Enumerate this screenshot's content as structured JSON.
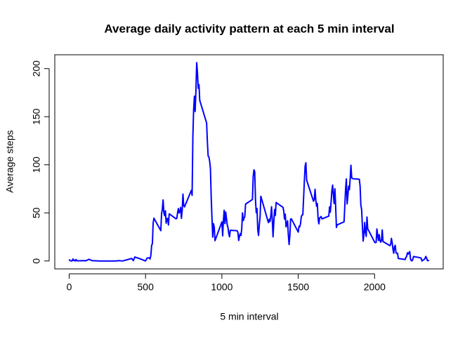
{
  "chart_data": {
    "type": "line",
    "title": "Average daily activity pattern at each 5 min interval",
    "x_label": "5 min interval",
    "y_label": "Average steps",
    "series": [
      {
        "color": "#0000ff",
        "x": [
          0,
          5,
          10,
          15,
          20,
          25,
          30,
          35,
          40,
          45,
          50,
          55,
          100,
          110,
          130,
          150,
          200,
          230,
          300,
          330,
          340,
          350,
          410,
          420,
          430,
          440,
          450,
          500,
          510,
          520,
          525,
          530,
          535,
          540,
          545,
          550,
          555,
          600,
          605,
          610,
          615,
          620,
          625,
          630,
          635,
          640,
          645,
          650,
          655,
          700,
          705,
          710,
          715,
          720,
          725,
          730,
          735,
          740,
          745,
          750,
          755,
          800,
          805,
          810,
          815,
          820,
          825,
          830,
          835,
          840,
          845,
          850,
          855,
          900,
          905,
          910,
          915,
          920,
          925,
          930,
          935,
          940,
          945,
          950,
          955,
          1000,
          1005,
          1010,
          1015,
          1020,
          1025,
          1030,
          1035,
          1040,
          1045,
          1050,
          1055,
          1100,
          1105,
          1110,
          1115,
          1120,
          1125,
          1130,
          1135,
          1140,
          1145,
          1150,
          1155,
          1200,
          1205,
          1210,
          1215,
          1220,
          1225,
          1230,
          1235,
          1240,
          1245,
          1250,
          1255,
          1300,
          1305,
          1310,
          1315,
          1320,
          1325,
          1330,
          1335,
          1340,
          1345,
          1350,
          1355,
          1400,
          1405,
          1410,
          1415,
          1420,
          1425,
          1430,
          1435,
          1440,
          1445,
          1450,
          1455,
          1500,
          1505,
          1510,
          1515,
          1520,
          1525,
          1530,
          1535,
          1540,
          1545,
          1550,
          1555,
          1600,
          1605,
          1610,
          1615,
          1620,
          1625,
          1630,
          1635,
          1640,
          1645,
          1650,
          1655,
          1700,
          1705,
          1710,
          1715,
          1720,
          1725,
          1730,
          1735,
          1740,
          1745,
          1750,
          1755,
          1800,
          1805,
          1810,
          1815,
          1820,
          1825,
          1830,
          1835,
          1840,
          1845,
          1850,
          1855,
          1900,
          1905,
          1910,
          1915,
          1920,
          1925,
          1930,
          1935,
          1940,
          1945,
          1950,
          1955,
          2000,
          2005,
          2010,
          2015,
          2020,
          2025,
          2030,
          2035,
          2040,
          2045,
          2050,
          2055,
          2100,
          2105,
          2110,
          2115,
          2120,
          2125,
          2130,
          2135,
          2140,
          2145,
          2150,
          2155,
          2200,
          2205,
          2210,
          2215,
          2220,
          2225,
          2230,
          2235,
          2240,
          2245,
          2250,
          2255,
          2300,
          2305,
          2310,
          2315,
          2320,
          2325,
          2330,
          2335,
          2340,
          2345,
          2350,
          2355
        ],
        "values": [
          1.7,
          0.3,
          0.1,
          0.2,
          0.1,
          2.1,
          0.5,
          0.9,
          0,
          1.5,
          0.3,
          0.1,
          0.3,
          0.2,
          1.8,
          0.3,
          0,
          0,
          0,
          0.3,
          0.1,
          0,
          2.6,
          0.3,
          4.1,
          3.5,
          3.1,
          0,
          3.0,
          3.3,
          3.0,
          2.1,
          6.1,
          16.0,
          18.3,
          39.5,
          44.5,
          31.5,
          49.3,
          53.8,
          63.5,
          50,
          47.1,
          52.2,
          39.3,
          44.0,
          44.2,
          37.4,
          49.0,
          43.8,
          44.4,
          50.5,
          54.5,
          49.9,
          51.0,
          55.7,
          44.3,
          52.3,
          69.5,
          57.8,
          56.2,
          73.4,
          68.2,
          129.4,
          157.5,
          171.2,
          155.4,
          177.3,
          206.2,
          195.9,
          179.6,
          183.4,
          167.0,
          143.5,
          124.0,
          109.1,
          108.1,
          103.7,
          96.0,
          66.2,
          45.2,
          24.8,
          38.8,
          35.0,
          21.1,
          40.6,
          26.1,
          42.4,
          52.7,
          38.9,
          50.8,
          44.3,
          37.4,
          34.7,
          28.3,
          25.1,
          31.9,
          31.4,
          29.7,
          21.3,
          25.5,
          28.4,
          26.5,
          33.4,
          50.0,
          42.0,
          44.6,
          46.0,
          59.2,
          63.9,
          87.7,
          94.8,
          92.8,
          63.4,
          50.2,
          54.5,
          32.4,
          26.5,
          37.7,
          45.1,
          67.3,
          42.3,
          39.9,
          43.3,
          41.0,
          46.2,
          56.4,
          42.8,
          25.1,
          40.0,
          53.5,
          47.3,
          60.8,
          55.8,
          52.0,
          43.6,
          48.7,
          35.5,
          37.5,
          41.8,
          27.5,
          17.1,
          26.1,
          43.6,
          43.8,
          30.0,
          36.1,
          35.5,
          38.8,
          46.0,
          47.8,
          48.1,
          65.3,
          82.9,
          98.7,
          102.1,
          84.0,
          62.1,
          64.1,
          74.5,
          63.2,
          56.9,
          59.8,
          43.9,
          38.6,
          44.7,
          45.5,
          46.2,
          43.7,
          46.6,
          56.3,
          50.7,
          61.2,
          72.7,
          78.9,
          68.9,
          59.7,
          75.1,
          56.5,
          34.8,
          37.5,
          40.7,
          58.0,
          74.7,
          85.3,
          59.3,
          67.8,
          77.7,
          74.2,
          85.3,
          99.5,
          86.6,
          85.6,
          84.9,
          77.8,
          58.0,
          53.4,
          36.3,
          20.7,
          27.4,
          40.0,
          30.2,
          25.5,
          45.7,
          33.5,
          19.6,
          19.0,
          19.3,
          33.3,
          26.8,
          21.2,
          27.3,
          21.3,
          19.5,
          21.3,
          32.3,
          20.2,
          15.9,
          17.2,
          23.5,
          19.2,
          12.5,
          8.0,
          14.7,
          16.3,
          8.7,
          7.8,
          8.1,
          2.6,
          1.5,
          3.7,
          4.8,
          8.5,
          7.1,
          8.7,
          9.8,
          2.2,
          0.3,
          0.1,
          1.6,
          4.6,
          3.3,
          2.8,
          0,
          0.8,
          1.0,
          1.6,
          2.6,
          4.7,
          3.3,
          0.6,
          0.2,
          1.1
        ]
      }
    ],
    "xlim": [
      -94.2,
      2449.2
    ],
    "ylim": [
      -8.25,
      214.4
    ],
    "xticks": [
      0,
      500,
      1000,
      1500,
      2000
    ],
    "yticks": [
      0,
      50,
      100,
      150,
      200
    ]
  }
}
